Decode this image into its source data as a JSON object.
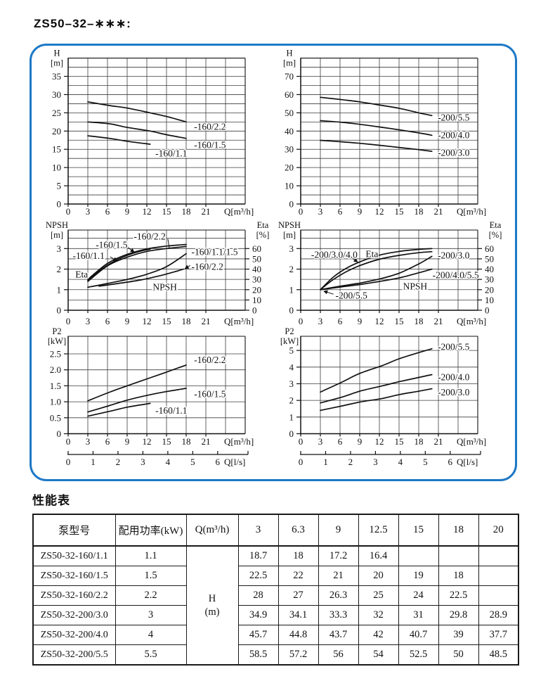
{
  "page": {
    "title": "ZS50–32–∗∗∗:"
  },
  "colors": {
    "accent_border": "#1d79c6",
    "ink": "#111111",
    "grid": "#3d3d3d"
  },
  "chart_data": [
    {
      "name": "head-curves-160",
      "type": "line",
      "xlim": [
        0,
        27
      ],
      "xgrid": 3,
      "xtick_vals": [
        0,
        3,
        6,
        9,
        12,
        15,
        18,
        21
      ],
      "xtick_labels": [
        "0",
        "3",
        "6",
        "9",
        "12",
        "15",
        "18",
        "21"
      ],
      "xlabel": "Q[m³/h]",
      "ylim": [
        0,
        40
      ],
      "ygrid": 2.5,
      "ytick_vals": [
        0,
        5,
        10,
        15,
        20,
        25,
        30,
        35
      ],
      "ytick_labels": [
        "0",
        "5",
        "10",
        "15",
        "20",
        "25",
        "30",
        "35"
      ],
      "ylabel_lines": [
        "H",
        "[m]"
      ],
      "series": [
        {
          "name": "-160/2.2",
          "x": [
            3,
            6.3,
            9,
            12.5,
            15,
            18
          ],
          "y": [
            28,
            27,
            26.3,
            25,
            24,
            22.5
          ]
        },
        {
          "name": "-160/1.5",
          "x": [
            3,
            6.3,
            9,
            12.5,
            15,
            18
          ],
          "y": [
            22.5,
            22,
            21,
            20,
            19,
            18
          ]
        },
        {
          "name": "-160/1.1",
          "x": [
            3,
            6.3,
            9,
            12.5
          ],
          "y": [
            18.7,
            18,
            17.2,
            16.4
          ]
        }
      ],
      "annotations": [
        {
          "text": "-160/2.2",
          "x": 19.2,
          "y": 21.2
        },
        {
          "text": "-160/1.5",
          "x": 19.2,
          "y": 16.2
        },
        {
          "text": "-160/1.1",
          "x": 13.3,
          "y": 13.9
        }
      ]
    },
    {
      "name": "head-curves-200",
      "type": "line",
      "xlim": [
        0,
        27
      ],
      "xgrid": 3,
      "xtick_vals": [
        0,
        3,
        6,
        9,
        12,
        15,
        18,
        21
      ],
      "xtick_labels": [
        "0",
        "3",
        "6",
        "9",
        "12",
        "15",
        "18",
        "21"
      ],
      "xlabel": "Q[m³/h]",
      "ylim": [
        0,
        80
      ],
      "ygrid": 5,
      "ytick_vals": [
        0,
        10,
        20,
        30,
        40,
        50,
        60,
        70
      ],
      "ytick_labels": [
        "0",
        "10",
        "20",
        "30",
        "40",
        "50",
        "60",
        "70"
      ],
      "ylabel_lines": [
        "H",
        "[m]"
      ],
      "series": [
        {
          "name": "-200/5.5",
          "x": [
            3,
            6.3,
            9,
            12.5,
            15,
            18,
            20
          ],
          "y": [
            58.5,
            57.2,
            56,
            54,
            52.5,
            50,
            48.5
          ]
        },
        {
          "name": "-200/4.0",
          "x": [
            3,
            6.3,
            9,
            12.5,
            15,
            18,
            20
          ],
          "y": [
            45.7,
            44.8,
            43.7,
            42,
            40.7,
            39,
            37.7
          ]
        },
        {
          "name": "-200/3.0",
          "x": [
            3,
            6.3,
            9,
            12.5,
            15,
            18,
            20
          ],
          "y": [
            34.9,
            34.1,
            33.3,
            32,
            31,
            29.8,
            28.9
          ]
        }
      ],
      "annotations": [
        {
          "text": "-200/5.5",
          "x": 20.9,
          "y": 47.5
        },
        {
          "text": "-200/4.0",
          "x": 20.9,
          "y": 37.8
        },
        {
          "text": "-200/3.0",
          "x": 20.9,
          "y": 28.2
        }
      ]
    },
    {
      "name": "npsh-eta-160",
      "type": "line",
      "xlim": [
        0,
        27
      ],
      "xgrid": 3,
      "xtick_vals": [
        0,
        3,
        6,
        9,
        12,
        15,
        18,
        21
      ],
      "xtick_labels": [
        "0",
        "3",
        "6",
        "9",
        "12",
        "15",
        "18",
        "21"
      ],
      "xlabel": "Q[m³/h]",
      "ylim": [
        0,
        3.9
      ],
      "ygrid": 0.5,
      "ytick_vals": [
        0,
        1,
        2,
        3
      ],
      "ytick_labels": [
        "0",
        "1",
        "2",
        "3"
      ],
      "ylabel_lines": [
        "NPSH",
        "[m]"
      ],
      "right_axis": {
        "tick_vals": [
          0,
          0.5,
          1,
          1.5,
          2,
          2.5,
          3
        ],
        "tick_labels": [
          "0",
          "10",
          "20",
          "30",
          "40",
          "50",
          "60"
        ],
        "label_lines": [
          "Eta",
          "[%]"
        ]
      },
      "series": [
        {
          "name": "eta -160/1.1",
          "x": [
            3,
            5,
            7,
            9,
            11,
            12.5
          ],
          "y": [
            1.45,
            1.98,
            2.38,
            2.67,
            2.87,
            2.97
          ]
        },
        {
          "name": "eta -160/1.5",
          "x": [
            3,
            6,
            9,
            12,
            15,
            18
          ],
          "y": [
            1.5,
            2.28,
            2.72,
            2.98,
            3.12,
            3.2
          ]
        },
        {
          "name": "eta -160/2.2",
          "x": [
            3,
            6,
            9,
            12,
            15,
            18
          ],
          "y": [
            1.4,
            2.16,
            2.58,
            2.86,
            3.0,
            3.1
          ]
        },
        {
          "name": "npsh -160/1.1/1.5",
          "x": [
            3,
            6,
            9,
            12,
            15,
            18
          ],
          "y": [
            1.12,
            1.3,
            1.5,
            1.75,
            2.12,
            2.75
          ]
        },
        {
          "name": "npsh -160/2.2",
          "x": [
            4.7,
            8,
            11,
            14,
            16,
            17.6
          ],
          "y": [
            1.17,
            1.32,
            1.47,
            1.68,
            1.85,
            2.0
          ]
        }
      ],
      "annotations": [
        {
          "text": "-160/2.2",
          "x": 10.0,
          "y": 3.6,
          "leader": [
            15.2,
            3.47,
            15.45,
            2.98
          ]
        },
        {
          "text": "-160/1.5",
          "x": 4.2,
          "y": 3.18,
          "leader": [
            8.9,
            3.1,
            10.1,
            2.82
          ],
          "arrow": true
        },
        {
          "text": "-160/1.1",
          "x": 0.7,
          "y": 2.65,
          "leader": [
            6.4,
            2.6,
            7.5,
            2.4
          ],
          "arrow": true
        },
        {
          "text": "Eta",
          "x": 1.1,
          "y": 1.74
        },
        {
          "text": "NPSH",
          "x": 12.9,
          "y": 1.13
        },
        {
          "text": "-160/1.1/1.5",
          "x": 18.8,
          "y": 2.84
        },
        {
          "text": "-160/2.2",
          "x": 18.8,
          "y": 2.12,
          "leader": [
            18.6,
            2.18,
            17.8,
            2.02
          ],
          "arrow": true
        }
      ]
    },
    {
      "name": "npsh-eta-200",
      "type": "line",
      "xlim": [
        0,
        27
      ],
      "xgrid": 3,
      "xtick_vals": [
        0,
        3,
        6,
        9,
        12,
        15,
        18,
        21
      ],
      "xtick_labels": [
        "0",
        "3",
        "6",
        "9",
        "12",
        "15",
        "18",
        "21"
      ],
      "xlabel": "Q[m³/h]",
      "ylim": [
        0,
        3.9
      ],
      "ygrid": 0.5,
      "ytick_vals": [
        0,
        1,
        2,
        3
      ],
      "ytick_labels": [
        "0",
        "1",
        "2",
        "3"
      ],
      "ylabel_lines": [
        "NPSH",
        "[m]"
      ],
      "right_axis": {
        "tick_vals": [
          0,
          0.5,
          1,
          1.5,
          2,
          2.5,
          3
        ],
        "tick_labels": [
          "0",
          "10",
          "20",
          "30",
          "40",
          "50",
          "60"
        ],
        "label_lines": [
          "Eta",
          "[%]"
        ]
      },
      "series": [
        {
          "name": "eta -200/3.0/4.0 upper",
          "x": [
            3,
            5,
            7,
            9,
            12,
            15,
            18,
            20
          ],
          "y": [
            1.0,
            1.62,
            2.05,
            2.35,
            2.68,
            2.86,
            2.96,
            3.0
          ]
        },
        {
          "name": "eta -200/3.0/4.0 lower",
          "x": [
            3,
            5,
            7,
            9,
            12,
            15,
            18,
            20
          ],
          "y": [
            1.0,
            1.5,
            1.88,
            2.17,
            2.48,
            2.67,
            2.8,
            2.85
          ]
        },
        {
          "name": "npsh -200/3.0",
          "x": [
            3,
            6,
            9,
            12,
            15,
            18,
            20
          ],
          "y": [
            1.0,
            1.17,
            1.32,
            1.52,
            1.8,
            2.25,
            2.62
          ]
        },
        {
          "name": "npsh -200/4.0/5.5",
          "x": [
            3,
            6,
            9,
            12,
            15,
            18,
            20
          ],
          "y": [
            1.0,
            1.13,
            1.25,
            1.4,
            1.57,
            1.82,
            2.0
          ]
        }
      ],
      "annotations": [
        {
          "text": "-200/3.0/4.0",
          "x": 1.6,
          "y": 2.7,
          "leader": [
            7.5,
            2.62,
            8.7,
            2.34
          ],
          "arrow": true
        },
        {
          "text": "Eta",
          "x": 9.9,
          "y": 2.74
        },
        {
          "text": "NPSH",
          "x": 15.6,
          "y": 1.16
        },
        {
          "text": "-200/5.5",
          "x": 5.3,
          "y": 0.72,
          "leader": [
            5.0,
            0.78,
            3.5,
            0.93
          ],
          "arrow": true
        },
        {
          "text": "-200/3.0",
          "x": 20.9,
          "y": 2.67
        },
        {
          "text": "-200/4.0/5.5",
          "x": 20.1,
          "y": 1.71
        }
      ]
    },
    {
      "name": "power-curves-160",
      "type": "line",
      "xlim": [
        0,
        27
      ],
      "xgrid": 3,
      "xtick_vals": [
        0,
        3,
        6,
        9,
        12,
        15,
        18,
        21
      ],
      "xtick_labels": [
        "0",
        "3",
        "6",
        "9",
        "12",
        "15",
        "18",
        "21"
      ],
      "xlabel": "Q[m³/h]",
      "ylim": [
        0,
        3.05
      ],
      "ygrid": 0.5,
      "ytick_vals": [
        0,
        0.5,
        1,
        1.5,
        2,
        2.5
      ],
      "ytick_labels": [
        "0",
        "0.5",
        "1.0",
        "1.5",
        "2.0",
        "2.5"
      ],
      "ylabel_lines": [
        "P2",
        "[kW]"
      ],
      "ls_axis": {
        "tick_vals": [
          0,
          1,
          2,
          3,
          4,
          5,
          6
        ],
        "tick_labels": [
          "0",
          "1",
          "2",
          "3",
          "4",
          "5",
          "6"
        ],
        "xlabel": "Q[l/s]",
        "units_per_lps": 3.8
      },
      "series": [
        {
          "name": "-160/2.2",
          "x": [
            3,
            6.3,
            9,
            12.5,
            15,
            18
          ],
          "y": [
            1.03,
            1.3,
            1.5,
            1.75,
            1.93,
            2.15
          ]
        },
        {
          "name": "-160/1.5",
          "x": [
            3,
            6.3,
            9,
            12.5,
            15,
            18
          ],
          "y": [
            0.68,
            0.88,
            1.05,
            1.22,
            1.32,
            1.42
          ]
        },
        {
          "name": "-160/1.1",
          "x": [
            3,
            6.3,
            9,
            12.5
          ],
          "y": [
            0.55,
            0.7,
            0.83,
            0.95
          ]
        }
      ],
      "annotations": [
        {
          "text": "-160/2.2",
          "x": 19.2,
          "y": 2.31
        },
        {
          "text": "-160/1.5",
          "x": 19.2,
          "y": 1.24
        },
        {
          "text": "-160/1.1",
          "x": 13.3,
          "y": 0.73
        }
      ]
    },
    {
      "name": "power-curves-200",
      "type": "line",
      "xlim": [
        0,
        27
      ],
      "xgrid": 3,
      "xtick_vals": [
        0,
        3,
        6,
        9,
        12,
        15,
        18,
        21
      ],
      "xtick_labels": [
        "0",
        "3",
        "6",
        "9",
        "12",
        "15",
        "18",
        "21"
      ],
      "xlabel": "Q[m³/h]",
      "ylim": [
        0,
        5.85
      ],
      "ygrid": 1,
      "ytick_vals": [
        0,
        1,
        2,
        3,
        4,
        5
      ],
      "ytick_labels": [
        "0",
        "1",
        "2",
        "3",
        "4",
        "5"
      ],
      "ylabel_lines": [
        "P2",
        "[kW]"
      ],
      "ls_axis": {
        "tick_vals": [
          0,
          1,
          2,
          3,
          4,
          5,
          6
        ],
        "tick_labels": [
          "0",
          "1",
          "2",
          "3",
          "4",
          "5",
          "6"
        ],
        "xlabel": "Q[l/s]",
        "units_per_lps": 3.8
      },
      "series": [
        {
          "name": "-200/5.5",
          "x": [
            3,
            6.3,
            9,
            12.5,
            15,
            18,
            20
          ],
          "y": [
            2.5,
            3.1,
            3.62,
            4.1,
            4.5,
            4.87,
            5.1
          ]
        },
        {
          "name": "-200/4.0",
          "x": [
            3,
            6.3,
            9,
            12.5,
            15,
            18,
            20
          ],
          "y": [
            1.85,
            2.2,
            2.55,
            2.88,
            3.12,
            3.38,
            3.55
          ]
        },
        {
          "name": "-200/3.0",
          "x": [
            3,
            6.3,
            9,
            12.5,
            15,
            18,
            20
          ],
          "y": [
            1.4,
            1.67,
            1.9,
            2.12,
            2.35,
            2.55,
            2.7
          ]
        }
      ],
      "annotations": [
        {
          "text": "-200/5.5",
          "x": 20.9,
          "y": 5.22
        },
        {
          "text": "-200/4.0",
          "x": 20.9,
          "y": 3.4
        },
        {
          "text": "-200/3.0",
          "x": 20.9,
          "y": 2.5
        }
      ]
    }
  ],
  "performance_table": {
    "title": "性能表",
    "header": [
      "泵型号",
      "配用功率(kW)",
      "Q(m³/h)",
      "3",
      "6.3",
      "9",
      "12.5",
      "15",
      "18",
      "20"
    ],
    "merged_cell_lines": [
      "H",
      "(m)"
    ],
    "rows": [
      {
        "model": "ZS50-32-160/1.1",
        "power": "1.1",
        "values": [
          "18.7",
          "18",
          "17.2",
          "16.4",
          "",
          "",
          ""
        ]
      },
      {
        "model": "ZS50-32-160/1.5",
        "power": "1.5",
        "values": [
          "22.5",
          "22",
          "21",
          "20",
          "19",
          "18",
          ""
        ]
      },
      {
        "model": "ZS50-32-160/2.2",
        "power": "2.2",
        "values": [
          "28",
          "27",
          "26.3",
          "25",
          "24",
          "22.5",
          ""
        ]
      },
      {
        "model": "ZS50-32-200/3.0",
        "power": "3",
        "values": [
          "34.9",
          "34.1",
          "33.3",
          "32",
          "31",
          "29.8",
          "28.9"
        ]
      },
      {
        "model": "ZS50-32-200/4.0",
        "power": "4",
        "values": [
          "45.7",
          "44.8",
          "43.7",
          "42",
          "40.7",
          "39",
          "37.7"
        ]
      },
      {
        "model": "ZS50-32-200/5.5",
        "power": "5.5",
        "values": [
          "58.5",
          "57.2",
          "56",
          "54",
          "52.5",
          "50",
          "48.5"
        ]
      }
    ]
  }
}
